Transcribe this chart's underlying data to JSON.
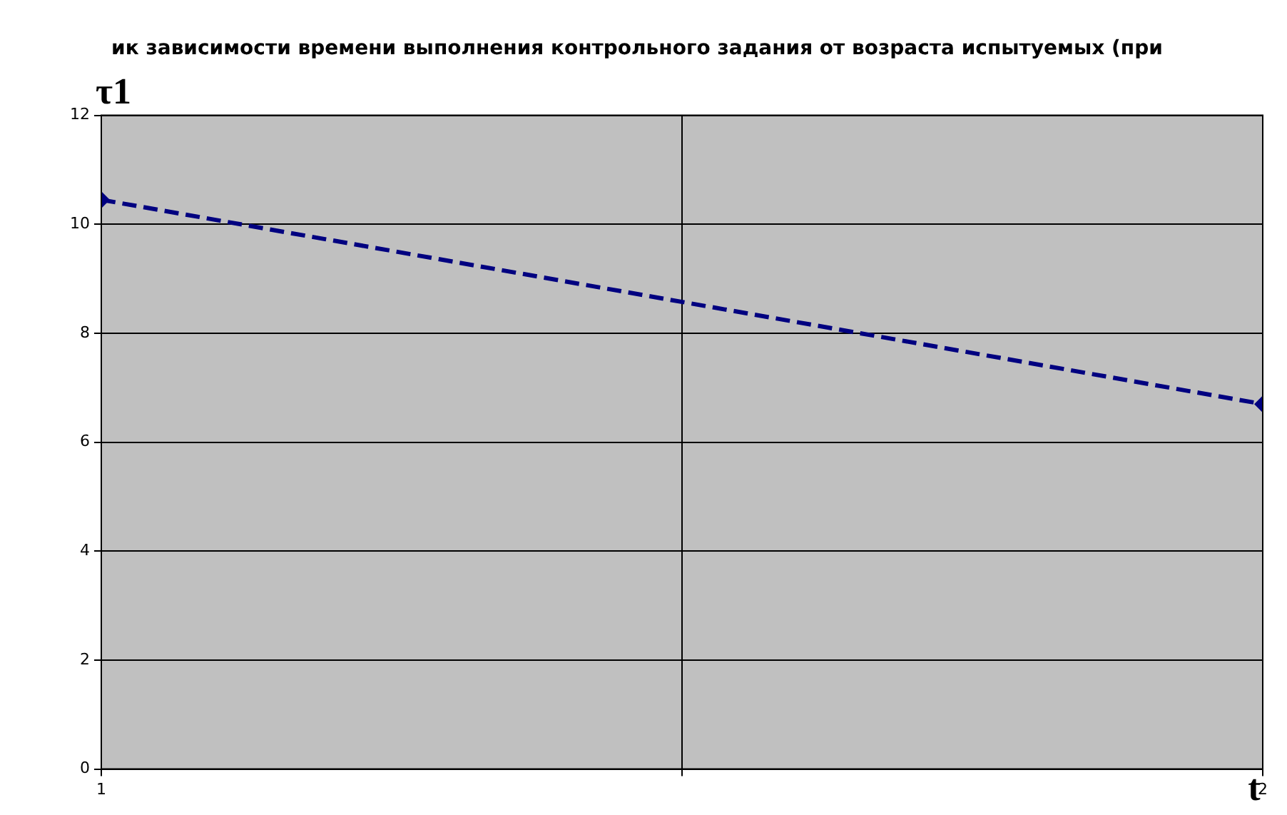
{
  "chart_data": {
    "type": "line",
    "title": "ик зависимости времени выполнения контрольного задания от возраста испытуемых (при",
    "xlabel": "t",
    "ylabel": "τ1",
    "x": [
      1,
      2
    ],
    "series": [
      {
        "color": "#000080",
        "values": [
          10.45,
          6.7
        ]
      }
    ],
    "xlim": [
      1,
      2
    ],
    "xticks": [
      1,
      {
        "value": 1.5,
        "label": null
      },
      2
    ],
    "ylim": [
      0,
      12
    ],
    "yticks": [
      0,
      2,
      4,
      6,
      8,
      10,
      12
    ],
    "grid": true,
    "legend": false,
    "marker": "diamond",
    "line_style": "dashed"
  }
}
